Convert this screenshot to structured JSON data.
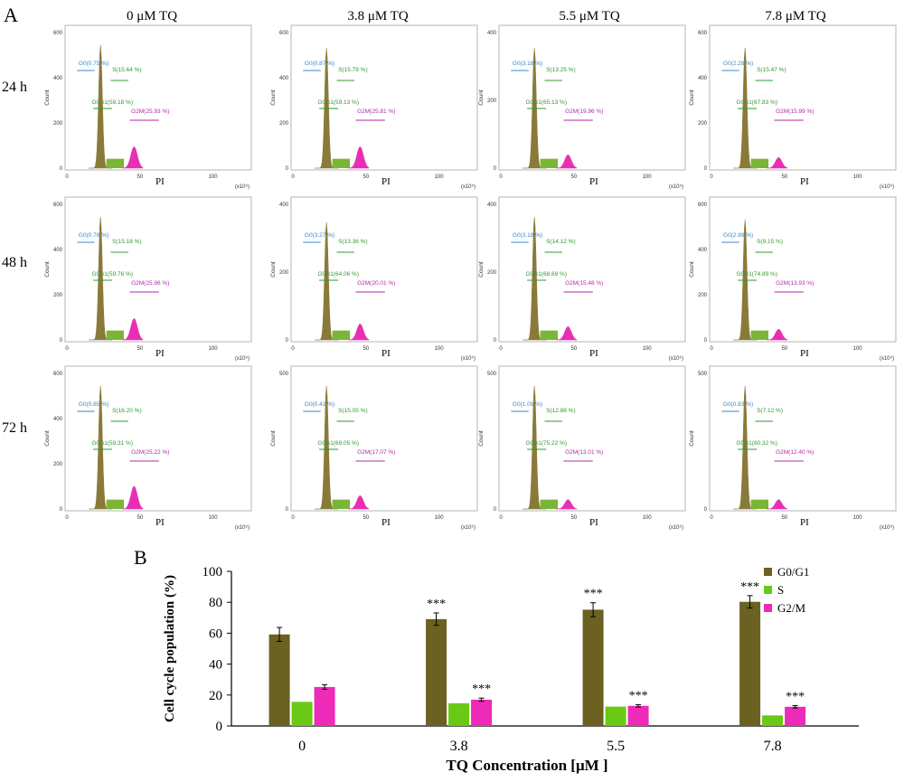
{
  "figure": {
    "panel_a": "A",
    "panel_b": "B",
    "columns": [
      "0 μM TQ",
      "3.8 μM TQ",
      "5.5 μM TQ",
      "7.8 μM TQ"
    ],
    "rows": [
      "24 h",
      "48 h",
      "72 h"
    ]
  },
  "histogram_axes": {
    "y_label": "Count",
    "x_label": "PI",
    "x_unit": "(x10⁵)",
    "x_ticks": [
      "0",
      "50",
      "100"
    ]
  },
  "histograms": [
    {
      "row": "24 h",
      "col": "0 μM TQ",
      "ymax": 600,
      "yticks": [
        "0",
        "200",
        "400",
        "600"
      ],
      "G0": "G0(0.75 %)",
      "S": "S(15.64 %)",
      "G0G1": "G0G1(59.18 %)",
      "G2M": "G2M(25.93 %)",
      "peak": 0.92,
      "g2": 0.16
    },
    {
      "row": "24 h",
      "col": "3.8 μM TQ",
      "ymax": 600,
      "yticks": [
        "0",
        "200",
        "400",
        "600"
      ],
      "G0": "G0(0.87 %)",
      "S": "S(15.79 %)",
      "G0G1": "G0G1(59.13 %)",
      "G2M": "G2M(25.81 %)",
      "peak": 0.9,
      "g2": 0.16
    },
    {
      "row": "24 h",
      "col": "5.5 μM TQ",
      "ymax": 400,
      "yticks": [
        "0",
        "200",
        "400"
      ],
      "G0": "G0(3.18 %)",
      "S": "S(13.25 %)",
      "G0G1": "G0G1(65.13 %)",
      "G2M": "G2M(19.96 %)",
      "peak": 0.9,
      "g2": 0.1
    },
    {
      "row": "24 h",
      "col": "7.8 μM TQ",
      "ymax": 600,
      "yticks": [
        "0",
        "200",
        "400",
        "600"
      ],
      "G0": "G0(2.28 %)",
      "S": "S(15.47 %)",
      "G0G1": "G0G1(67.83 %)",
      "G2M": "G2M(15.99 %)",
      "peak": 0.9,
      "g2": 0.08
    },
    {
      "row": "48 h",
      "col": "0 μM TQ",
      "ymax": 600,
      "yticks": [
        "0",
        "200",
        "400",
        "600"
      ],
      "G0": "G0(0.78 %)",
      "S": "S(15.18 %)",
      "G0G1": "G0G1(59.76 %)",
      "G2M": "G2M(25.96 %)",
      "peak": 0.92,
      "g2": 0.16
    },
    {
      "row": "48 h",
      "col": "3.8 μM TQ",
      "ymax": 400,
      "yticks": [
        "0",
        "200",
        "400"
      ],
      "G0": "G0(3.27 %)",
      "S": "S(13.36 %)",
      "G0G1": "G0G1(64.06 %)",
      "G2M": "G2M(20.01 %)",
      "peak": 0.88,
      "g2": 0.12
    },
    {
      "row": "48 h",
      "col": "5.5 μM TQ",
      "ymax": 400,
      "yticks": [
        "0",
        "200",
        "400"
      ],
      "G0": "G0(3.18 %)",
      "S": "S(14.12 %)",
      "G0G1": "G0G1(68.69 %)",
      "G2M": "G2M(15.48 %)",
      "peak": 0.92,
      "g2": 0.1
    },
    {
      "row": "48 h",
      "col": "7.8 μM TQ",
      "ymax": 600,
      "yticks": [
        "0",
        "200",
        "400",
        "600"
      ],
      "G0": "G0(2.99 %)",
      "S": "S(9.15 %)",
      "G0G1": "G0G1(74.89 %)",
      "G2M": "G2M(13.93 %)",
      "peak": 0.9,
      "g2": 0.08
    },
    {
      "row": "72 h",
      "col": "0 μM TQ",
      "ymax": 600,
      "yticks": [
        "0",
        "200",
        "400",
        "600"
      ],
      "G0": "G0(0.65 %)",
      "S": "S(16.20 %)",
      "G0G1": "G0G1(59.31 %)",
      "G2M": "G2M(25.22 %)",
      "peak": 0.92,
      "g2": 0.17
    },
    {
      "row": "72 h",
      "col": "3.8 μM TQ",
      "ymax": 500,
      "yticks": [
        "0",
        "500"
      ],
      "G0": "G0(0.42 %)",
      "S": "S(15.05 %)",
      "G0G1": "G0G1(69.05 %)",
      "G2M": "G2M(17.07 %)",
      "peak": 0.92,
      "g2": 0.1
    },
    {
      "row": "72 h",
      "col": "5.5 μM TQ",
      "ymax": 500,
      "yticks": [
        "0",
        "500"
      ],
      "G0": "G0(1.09 %)",
      "S": "S(12.88 %)",
      "G0G1": "G0G1(75.22 %)",
      "G2M": "G2M(13.01 %)",
      "peak": 0.92,
      "g2": 0.07
    },
    {
      "row": "72 h",
      "col": "7.8 μM TQ",
      "ymax": 500,
      "yticks": [
        "0",
        "500"
      ],
      "G0": "G0(0.83 %)",
      "S": "S(7.12 %)",
      "G0G1": "G0G1(80.32 %)",
      "G2M": "G2M(12.40 %)",
      "peak": 0.92,
      "g2": 0.07
    }
  ],
  "colors": {
    "g0g1": "#6b6121",
    "s": "#69c914",
    "g2m": "#ee2bb9",
    "g0_label": "#3a87c8",
    "s_label": "#2f9a2f",
    "g2m_label": "#b02aa8",
    "hist_g1": "#8a7a3a",
    "hist_s": "#7ab536",
    "hist_g2": "#e82fb3"
  },
  "chart_data": {
    "type": "bar",
    "title": "",
    "xlabel": "TQ Concentration [μM ]",
    "ylabel": "Cell cycle population (%)",
    "ylim": [
      0,
      100
    ],
    "yticks": [
      "0",
      "20",
      "40",
      "60",
      "80",
      "100"
    ],
    "categories": [
      "0",
      "3.8",
      "5.5",
      "7.8"
    ],
    "legend_position": "top-right",
    "series": [
      {
        "name": "G0/G1",
        "values": [
          59.2,
          69.1,
          75.2,
          80.3
        ],
        "errors": [
          4.5,
          4.0,
          4.5,
          4.0
        ],
        "sig": [
          "",
          "***",
          "***",
          "***"
        ]
      },
      {
        "name": "S",
        "values": [
          15.6,
          14.7,
          12.5,
          6.8
        ],
        "errors": [
          0,
          0,
          0,
          0
        ],
        "sig": [
          "",
          "",
          "",
          ""
        ]
      },
      {
        "name": "G2/M",
        "values": [
          25.2,
          17.0,
          13.0,
          12.4
        ],
        "errors": [
          1.5,
          1.0,
          0.8,
          0.8
        ],
        "sig": [
          "",
          "***",
          "***",
          "***"
        ]
      }
    ]
  }
}
